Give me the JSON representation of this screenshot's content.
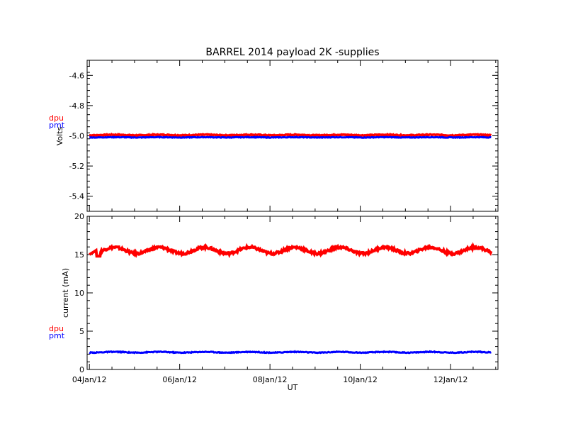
{
  "title": "BARREL 2014 payload 2K -supplies",
  "colors": {
    "dpu": "#ff0000",
    "pmt": "#0000ff",
    "axes": "#000000",
    "background": "#ffffff"
  },
  "chart_data": [
    {
      "type": "line",
      "ylabel": "Volts",
      "xlabel": "",
      "ylim": [
        -5.5,
        -4.5
      ],
      "yticks": [
        "-4.6",
        "-4.8",
        "-5.0",
        "-5.2",
        "-5.4"
      ],
      "xlim_days": [
        3.95,
        13.05
      ],
      "xticks": [],
      "legend": [
        "dpu",
        "pmt"
      ],
      "legend_placement": "left-outside",
      "series": [
        {
          "name": "dpu",
          "color": "#ff0000",
          "mean": -4.995,
          "amplitude": 0.002,
          "noise": 0.003
        },
        {
          "name": "pmt",
          "color": "#0000ff",
          "mean": -5.01,
          "amplitude": 0.001,
          "noise": 0.002
        }
      ]
    },
    {
      "type": "line",
      "ylabel": "current (mA)",
      "xlabel": "UT",
      "ylim": [
        0,
        20
      ],
      "yticks": [
        "0",
        "5",
        "10",
        "15",
        "20"
      ],
      "xlim_days": [
        3.95,
        13.05
      ],
      "xticks": [
        "04Jan/12",
        "06Jan/12",
        "08Jan/12",
        "10Jan/12",
        "12Jan/12"
      ],
      "legend": [
        "dpu",
        "pmt"
      ],
      "legend_placement": "left-outside",
      "series": [
        {
          "name": "dpu",
          "color": "#ff0000",
          "mean": 15.55,
          "amplitude": 0.4,
          "noise": 0.15,
          "start": 15.0,
          "dip": 14.8
        },
        {
          "name": "pmt",
          "color": "#0000ff",
          "mean": 2.25,
          "amplitude": 0.05,
          "noise": 0.05
        }
      ]
    }
  ]
}
